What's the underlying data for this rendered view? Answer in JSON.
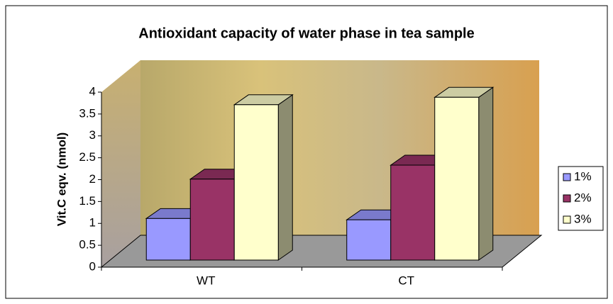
{
  "chart_data": {
    "type": "bar3d",
    "title": "Antioxidant capacity of  water phase in tea sample",
    "y_label": "Vit.C eqv. (nmol)",
    "categories": [
      "WT",
      "CT"
    ],
    "series": [
      {
        "name": "1%",
        "color": "#9999ff",
        "values": [
          0.95,
          0.92
        ]
      },
      {
        "name": "2%",
        "color": "#993366",
        "values": [
          1.85,
          2.17
        ]
      },
      {
        "name": "3%",
        "color": "#ffffcc",
        "values": [
          3.55,
          3.72
        ]
      }
    ],
    "ylim": [
      0,
      4
    ],
    "yticks": [
      0,
      0.5,
      1,
      1.5,
      2,
      2.5,
      3,
      3.5,
      4
    ],
    "legend": "right"
  }
}
